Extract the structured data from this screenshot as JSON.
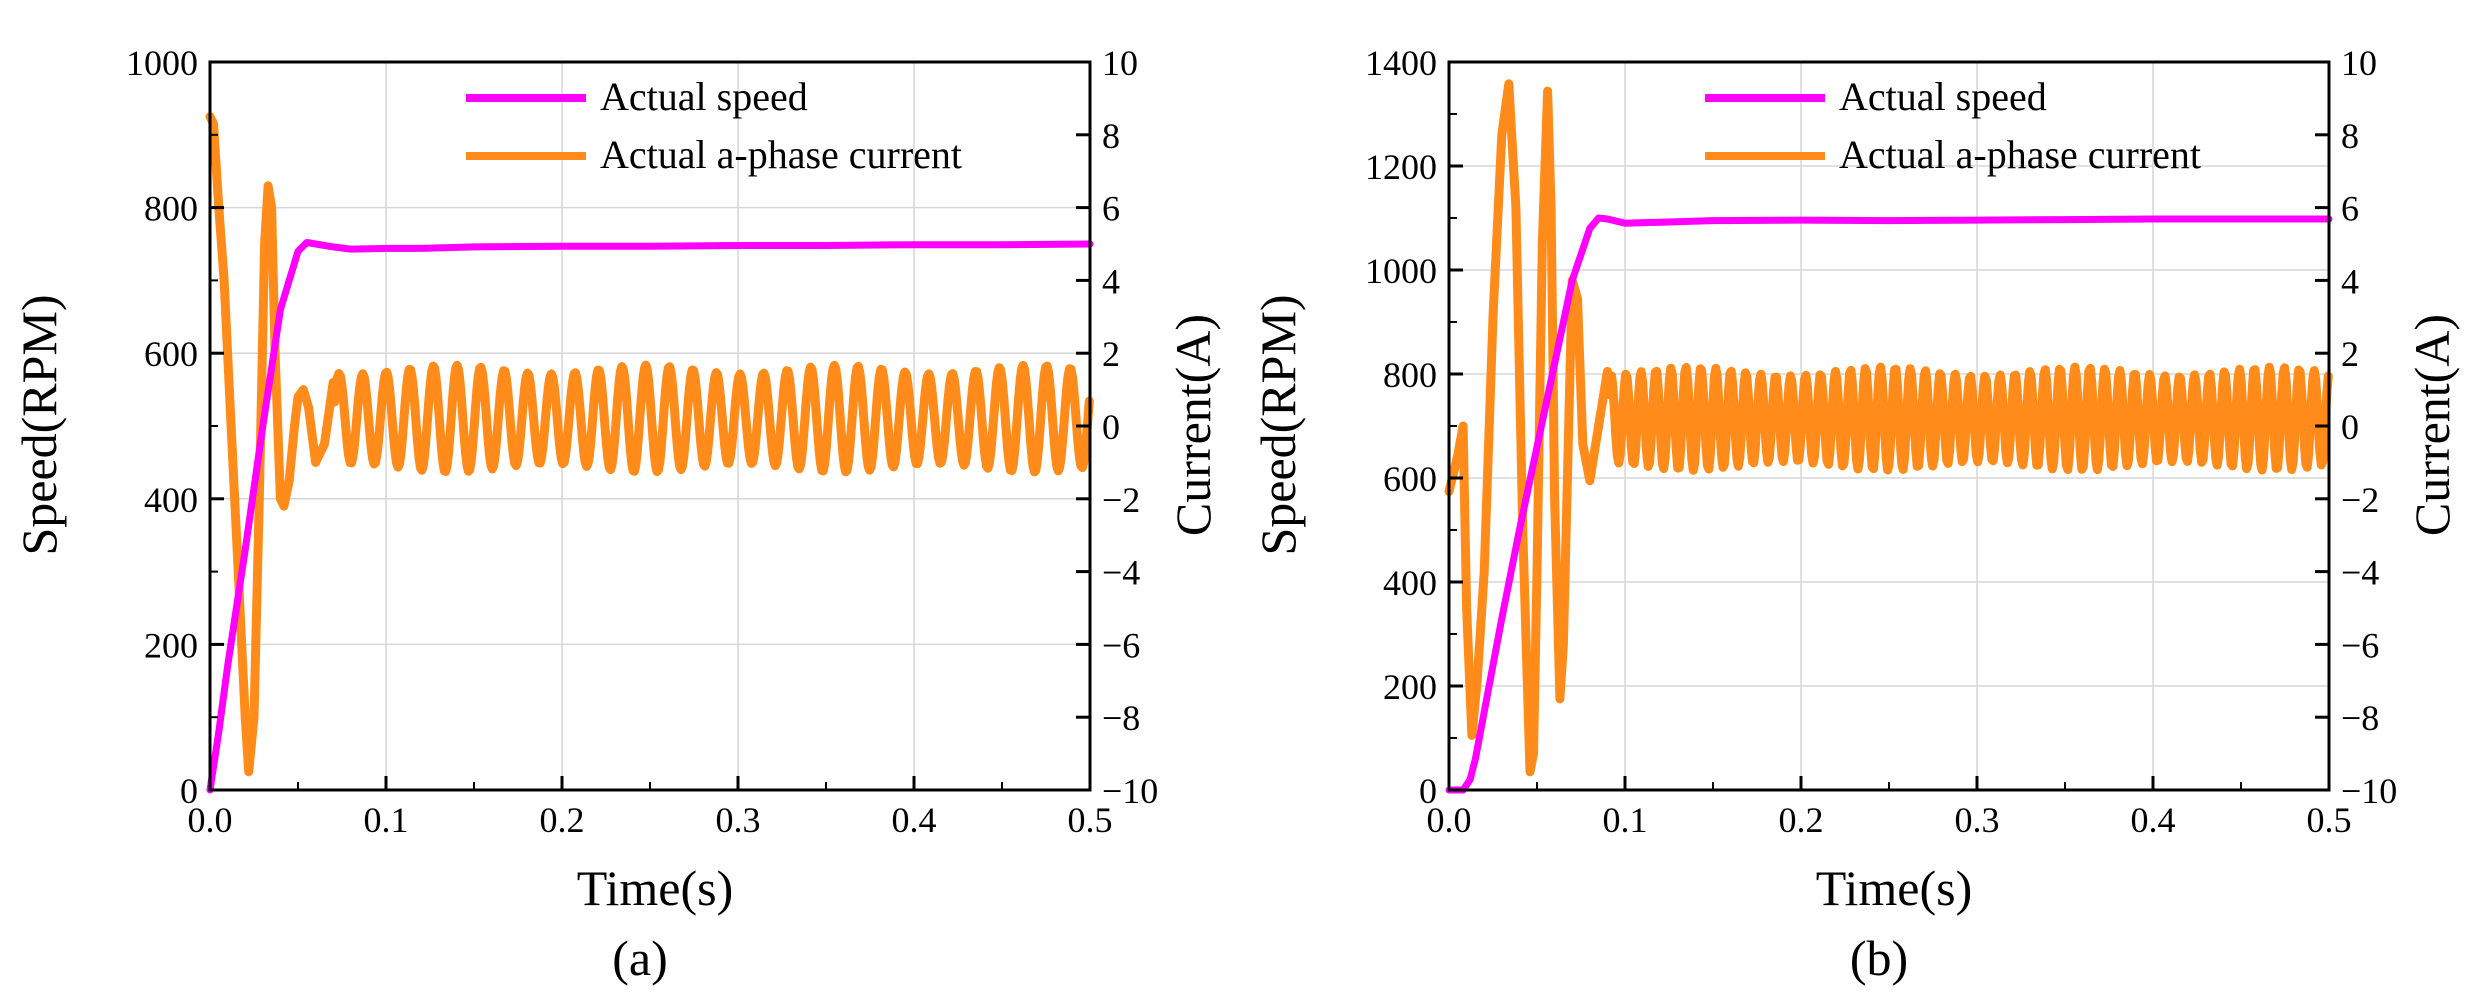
{
  "chart_data": [
    {
      "type": "line",
      "panel_label": "(a)",
      "xlabel": "Time(s)",
      "ylabel": "Speed(RPM)",
      "y2label": "Current(A)",
      "xlim": [
        0,
        0.5
      ],
      "ylim": [
        0,
        1000
      ],
      "y2lim": [
        -10,
        10
      ],
      "xticks": [
        "0.0",
        "0.1",
        "0.2",
        "0.3",
        "0.4",
        "0.5"
      ],
      "yticks": [
        "0",
        "200",
        "400",
        "600",
        "800",
        "1000"
      ],
      "y2ticks": [
        "−10",
        "−8",
        "−6",
        "−4",
        "−2",
        "0",
        "2",
        "4",
        "6",
        "8",
        "10"
      ],
      "grid": true,
      "legend_position": "top-right",
      "colors": {
        "speed": "#ff00ff",
        "current": "#ff8c1a"
      },
      "series": [
        {
          "name": "Actual speed",
          "axis": "left",
          "x": [
            0,
            0.005,
            0.01,
            0.02,
            0.03,
            0.04,
            0.05,
            0.055,
            0.06,
            0.07,
            0.08,
            0.1,
            0.12,
            0.15,
            0.2,
            0.25,
            0.3,
            0.35,
            0.4,
            0.45,
            0.5
          ],
          "values": [
            0,
            80,
            170,
            330,
            500,
            660,
            740,
            752,
            750,
            746,
            743,
            744,
            744,
            746,
            747,
            747,
            748,
            748,
            749,
            749,
            750
          ]
        },
        {
          "name": "Actual a-phase current",
          "axis": "right",
          "x": [
            0,
            0.002,
            0.005,
            0.008,
            0.012,
            0.016,
            0.02,
            0.022,
            0.025,
            0.028,
            0.031,
            0.033,
            0.035,
            0.037,
            0.04,
            0.042,
            0.045,
            0.048,
            0.05,
            0.053,
            0.056,
            0.06,
            0.065,
            0.07
          ],
          "values": [
            8.5,
            8.3,
            6,
            4,
            0,
            -4,
            -8,
            -9.5,
            -8,
            -2,
            5,
            6.6,
            6,
            2,
            -2,
            -2.2,
            -1.5,
            0,
            0.8,
            1,
            0.5,
            -1,
            -0.5,
            1.2
          ],
          "steady_oscillation": {
            "from_time": 0.07,
            "period": 0.0134,
            "center": 0.2,
            "amplitude": 1.35
          }
        }
      ]
    },
    {
      "type": "line",
      "panel_label": "(b)",
      "xlabel": "Time(s)",
      "ylabel": "Speed(RPM)",
      "y2label": "Current(A)",
      "xlim": [
        0,
        0.5
      ],
      "ylim": [
        0,
        1400
      ],
      "y2lim": [
        -10,
        10
      ],
      "xticks": [
        "0.0",
        "0.1",
        "0.2",
        "0.3",
        "0.4",
        "0.5"
      ],
      "yticks": [
        "0",
        "200",
        "400",
        "600",
        "800",
        "1000",
        "1200",
        "1400"
      ],
      "y2ticks": [
        "−10",
        "−8",
        "−6",
        "−4",
        "−2",
        "0",
        "2",
        "4",
        "6",
        "8",
        "10"
      ],
      "grid": true,
      "legend_position": "top-right",
      "colors": {
        "speed": "#ff00ff",
        "current": "#ff8c1a"
      },
      "series": [
        {
          "name": "Actual speed",
          "axis": "left",
          "x": [
            0,
            0.008,
            0.012,
            0.015,
            0.02,
            0.03,
            0.04,
            0.05,
            0.06,
            0.07,
            0.08,
            0.085,
            0.09,
            0.1,
            0.12,
            0.15,
            0.2,
            0.25,
            0.3,
            0.35,
            0.4,
            0.45,
            0.5
          ],
          "values": [
            0,
            0,
            20,
            60,
            150,
            330,
            500,
            660,
            820,
            980,
            1080,
            1100,
            1098,
            1090,
            1092,
            1095,
            1096,
            1095,
            1096,
            1097,
            1098,
            1098,
            1098
          ],
          "steady_oscillation": null
        },
        {
          "name": "Actual a-phase current",
          "axis": "right",
          "x": [
            0,
            0.005,
            0.008,
            0.01,
            0.013,
            0.016,
            0.02,
            0.025,
            0.03,
            0.034,
            0.038,
            0.042,
            0.046,
            0.048,
            0.05,
            0.053,
            0.056,
            0.058,
            0.06,
            0.063,
            0.065,
            0.07,
            0.073,
            0.076,
            0.08,
            0.085,
            0.09
          ],
          "values": [
            -1.8,
            -0.8,
            0,
            -5,
            -8.5,
            -7,
            -4,
            3,
            8,
            9.4,
            6,
            -3,
            -9.5,
            -9,
            -4,
            5,
            9.2,
            6,
            -2,
            -7.5,
            -6,
            4,
            3.5,
            -0.5,
            -1.5,
            0,
            1.5
          ],
          "steady_oscillation": {
            "from_time": 0.09,
            "period": 0.0085,
            "center": 0.2,
            "amplitude": 1.3
          }
        }
      ]
    }
  ]
}
